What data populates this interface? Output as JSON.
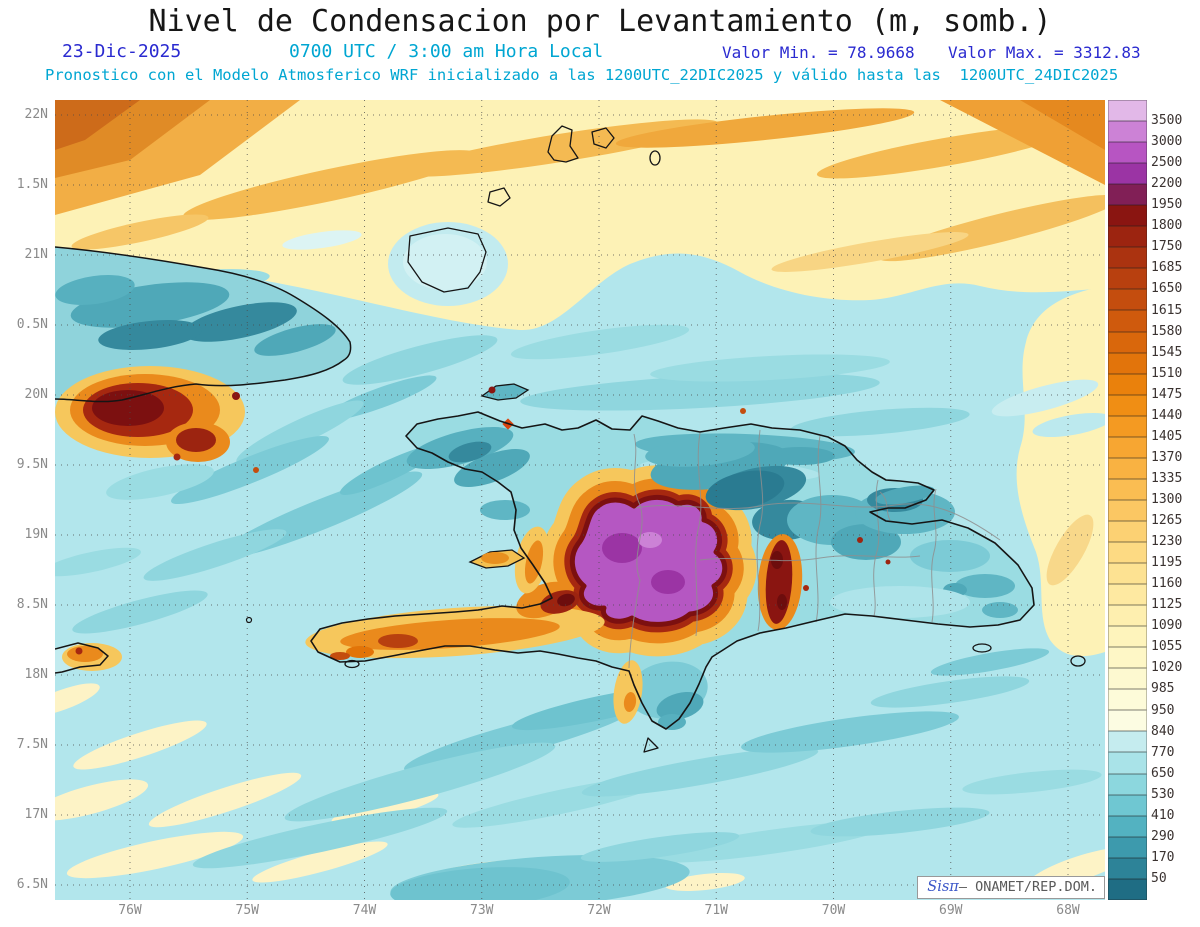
{
  "header": {
    "title": "Nivel de Condensacion por Levantamiento (m, somb.)",
    "date": "23-Dic-2025",
    "time": "0700 UTC / 3:00 am Hora Local",
    "value_min": "Valor Min. = 78.9668",
    "value_max": "Valor Max. = 3312.83",
    "model_info": "Pronostico con el Modelo Atmosferico WRF inicializado a las 1200UTC_22DIC2025 y válido hasta las  1200UTC_24DIC2025"
  },
  "map": {
    "y_axis_labels": [
      "22N",
      "1.5N",
      "21N",
      "0.5N",
      "20N",
      "9.5N",
      "19N",
      "8.5N",
      "18N",
      "7.5N",
      "17N",
      "6.5N"
    ],
    "x_axis_labels": [
      "76W",
      "75W",
      "74W",
      "73W",
      "72W",
      "71W",
      "70W",
      "69W",
      "68W"
    ]
  },
  "colorbar": {
    "values": [
      "3500",
      "3000",
      "2500",
      "2200",
      "1950",
      "1800",
      "1750",
      "1685",
      "1650",
      "1615",
      "1580",
      "1545",
      "1510",
      "1475",
      "1440",
      "1405",
      "1370",
      "1335",
      "1300",
      "1265",
      "1230",
      "1195",
      "1160",
      "1125",
      "1090",
      "1055",
      "1020",
      "985",
      "950",
      "840",
      "770",
      "650",
      "530",
      "410",
      "290",
      "170",
      "50"
    ],
    "colors": [
      "#e2b8e8",
      "#cc82d6",
      "#b755c2",
      "#9b34a4",
      "#811f56",
      "#8a1511",
      "#9c2410",
      "#ab3310",
      "#b8400f",
      "#c44d0e",
      "#cf5a0d",
      "#d9670c",
      "#e2740b",
      "#ea810c",
      "#f08e14",
      "#f49a22",
      "#f7a632",
      "#f9b242",
      "#fabd52",
      "#fbc763",
      "#fcd173",
      "#fdda83",
      "#fde292",
      "#fee9a1",
      "#feefaf",
      "#fef4bc",
      "#fef7c6",
      "#fdf9d0",
      "#fdfbd9",
      "#fcfce2",
      "#c5ecef",
      "#a9e3e8",
      "#8cd7de",
      "#6fc7d2",
      "#53b2c1",
      "#3d9aad",
      "#2d8398",
      "#1f6d84"
    ]
  },
  "watermark": {
    "brand": "Sisπ",
    "org": "– ONAMET/REP.DOM."
  },
  "colors": {
    "accent_blue": "#2a2ad0",
    "accent_cyan": "#00a6d2"
  }
}
